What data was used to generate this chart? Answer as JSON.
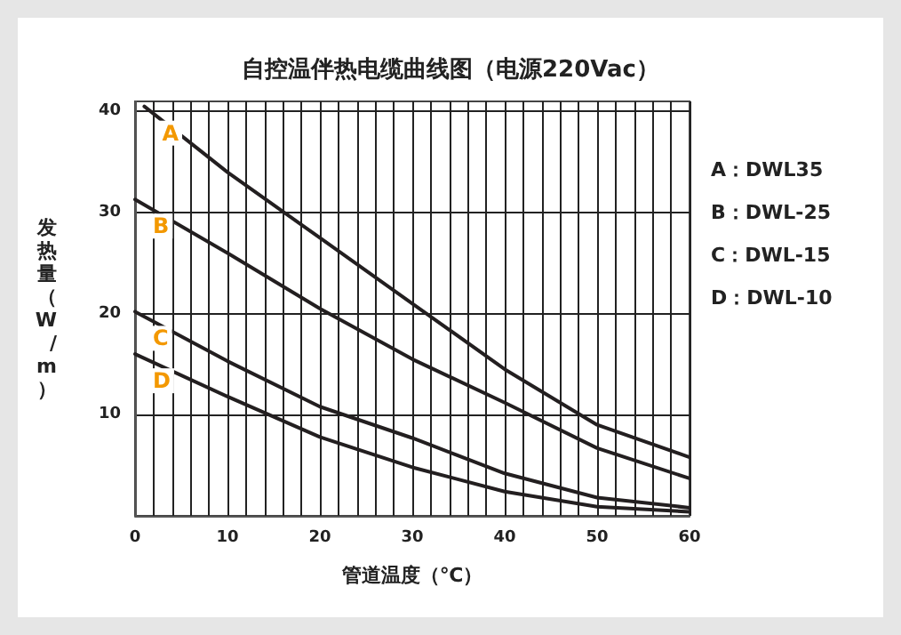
{
  "chart_data": {
    "type": "line",
    "title": "自控温伴热电缆曲线图（电源220Vac）",
    "xlabel": "管道温度（℃）",
    "ylabel": "发热量（W/m）",
    "x": [
      0,
      10,
      20,
      30,
      40,
      50,
      60
    ],
    "series": [
      {
        "name": "A",
        "color": "#231f20",
        "x": [
          1,
          10,
          20,
          30,
          40,
          50,
          60
        ],
        "values": [
          40.5,
          34,
          27.5,
          21,
          14.5,
          9,
          5.8
        ]
      },
      {
        "name": "B",
        "color": "#231f20",
        "values": [
          31.3,
          26,
          20.5,
          15.5,
          11.2,
          6.7,
          3.7
        ]
      },
      {
        "name": "C",
        "color": "#231f20",
        "values": [
          20.2,
          15.3,
          10.8,
          7.7,
          4.2,
          1.8,
          0.8
        ]
      },
      {
        "name": "D",
        "color": "#231f20",
        "values": [
          16,
          11.8,
          7.8,
          4.8,
          2.4,
          0.9,
          0.4
        ]
      }
    ],
    "annotations": [
      "A：DWL35",
      "B：DWL-25",
      "C：DWL-15",
      "D：DWL-10"
    ],
    "xlim": [
      0,
      60
    ],
    "xticks": [
      0,
      10,
      20,
      30,
      40,
      50,
      60
    ],
    "ylim": [
      0,
      41
    ],
    "yticks": [
      10,
      20,
      30,
      40
    ],
    "grid": true,
    "legend": false,
    "marker": "none",
    "line_style": "solid"
  }
}
